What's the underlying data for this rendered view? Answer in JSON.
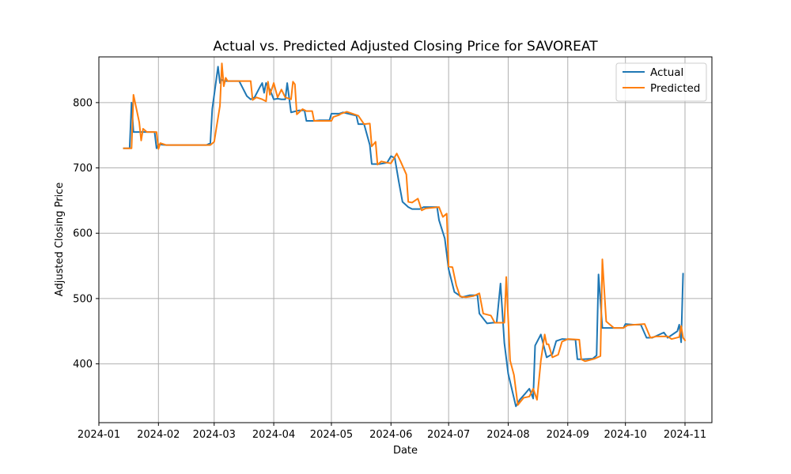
{
  "chart_data": {
    "type": "line",
    "title": "Actual vs. Predicted Adjusted Closing Price for SAVOREAT",
    "xlabel": "Date",
    "ylabel": "Adjusted Closing Price",
    "xlim": [
      "2024-01-01",
      "2024-11-15"
    ],
    "ylim": [
      310,
      870
    ],
    "x_ticks": [
      "2024-01-01",
      "2024-02-01",
      "2024-03-01",
      "2024-04-01",
      "2024-05-01",
      "2024-06-01",
      "2024-07-01",
      "2024-08-01",
      "2024-09-01",
      "2024-10-01",
      "2024-11-01"
    ],
    "x_tick_labels": [
      "2024-01",
      "2024-02",
      "2024-03",
      "2024-04",
      "2024-05",
      "2024-06",
      "2024-07",
      "2024-08",
      "2024-09",
      "2024-10",
      "2024-11"
    ],
    "y_ticks": [
      400,
      500,
      600,
      700,
      800
    ],
    "grid": true,
    "legend_position": "top-right",
    "colors": {
      "actual": "#1f77b4",
      "predicted": "#ff7f0e",
      "grid": "#b0b0b0",
      "axis": "#000000"
    },
    "series": [
      {
        "name": "Actual",
        "points": [
          [
            "2024-01-14",
            730
          ],
          [
            "2024-01-17",
            730
          ],
          [
            "2024-01-18",
            800
          ],
          [
            "2024-01-19",
            755
          ],
          [
            "2024-01-22",
            755
          ],
          [
            "2024-01-26",
            755
          ],
          [
            "2024-01-30",
            755
          ],
          [
            "2024-01-31",
            730
          ],
          [
            "2024-02-01",
            736
          ],
          [
            "2024-02-05",
            735
          ],
          [
            "2024-02-26",
            735
          ],
          [
            "2024-02-28",
            738
          ],
          [
            "2024-02-29",
            790
          ],
          [
            "2024-03-03",
            855
          ],
          [
            "2024-03-04",
            830
          ],
          [
            "2024-03-05",
            835
          ],
          [
            "2024-03-06",
            833
          ],
          [
            "2024-03-14",
            833
          ],
          [
            "2024-03-18",
            810
          ],
          [
            "2024-03-20",
            805
          ],
          [
            "2024-03-22",
            808
          ],
          [
            "2024-03-25",
            825
          ],
          [
            "2024-03-26",
            830
          ],
          [
            "2024-03-27",
            815
          ],
          [
            "2024-03-28",
            830
          ],
          [
            "2024-03-30",
            820
          ],
          [
            "2024-04-01",
            805
          ],
          [
            "2024-04-03",
            806
          ],
          [
            "2024-04-05",
            805
          ],
          [
            "2024-04-07",
            805
          ],
          [
            "2024-04-08",
            830
          ],
          [
            "2024-04-10",
            785
          ],
          [
            "2024-04-14",
            788
          ],
          [
            "2024-04-17",
            788
          ],
          [
            "2024-04-18",
            772
          ],
          [
            "2024-04-22",
            772
          ],
          [
            "2024-04-25",
            773
          ],
          [
            "2024-04-30",
            773
          ],
          [
            "2024-05-01",
            783
          ],
          [
            "2024-05-05",
            783
          ],
          [
            "2024-05-07",
            785
          ],
          [
            "2024-05-14",
            780
          ],
          [
            "2024-05-15",
            767
          ],
          [
            "2024-05-18",
            767
          ],
          [
            "2024-05-21",
            735
          ],
          [
            "2024-05-22",
            706
          ],
          [
            "2024-05-26",
            706
          ],
          [
            "2024-05-30",
            708
          ],
          [
            "2024-06-01",
            718
          ],
          [
            "2024-06-03",
            715
          ],
          [
            "2024-06-05",
            680
          ],
          [
            "2024-06-07",
            648
          ],
          [
            "2024-06-10",
            640
          ],
          [
            "2024-06-12",
            637
          ],
          [
            "2024-06-16",
            637
          ],
          [
            "2024-06-18",
            640
          ],
          [
            "2024-06-25",
            640
          ],
          [
            "2024-06-26",
            620
          ],
          [
            "2024-06-29",
            592
          ],
          [
            "2024-07-01",
            545
          ],
          [
            "2024-07-04",
            510
          ],
          [
            "2024-07-08",
            502
          ],
          [
            "2024-07-12",
            505
          ],
          [
            "2024-07-16",
            505
          ],
          [
            "2024-07-17",
            477
          ],
          [
            "2024-07-21",
            462
          ],
          [
            "2024-07-24",
            463
          ],
          [
            "2024-07-26",
            463
          ],
          [
            "2024-07-28",
            523
          ],
          [
            "2024-07-30",
            432
          ],
          [
            "2024-08-01",
            385
          ],
          [
            "2024-08-03",
            360
          ],
          [
            "2024-08-05",
            335
          ],
          [
            "2024-08-07",
            345
          ],
          [
            "2024-08-10",
            355
          ],
          [
            "2024-08-12",
            362
          ],
          [
            "2024-08-14",
            347
          ],
          [
            "2024-08-15",
            428
          ],
          [
            "2024-08-18",
            445
          ],
          [
            "2024-08-21",
            410
          ],
          [
            "2024-08-24",
            415
          ],
          [
            "2024-08-26",
            435
          ],
          [
            "2024-08-29",
            438
          ],
          [
            "2024-09-05",
            437
          ],
          [
            "2024-09-06",
            407
          ],
          [
            "2024-09-09",
            407
          ],
          [
            "2024-09-14",
            408
          ],
          [
            "2024-09-16",
            413
          ],
          [
            "2024-09-17",
            537
          ],
          [
            "2024-09-19",
            455
          ],
          [
            "2024-09-22",
            455
          ],
          [
            "2024-09-30",
            455
          ],
          [
            "2024-10-01",
            461
          ],
          [
            "2024-10-05",
            460
          ],
          [
            "2024-10-09",
            460
          ],
          [
            "2024-10-12",
            440
          ],
          [
            "2024-10-15",
            440
          ],
          [
            "2024-10-21",
            448
          ],
          [
            "2024-10-23",
            440
          ],
          [
            "2024-10-28",
            450
          ],
          [
            "2024-10-29",
            460
          ],
          [
            "2024-10-30",
            433
          ],
          [
            "2024-10-31",
            538
          ]
        ]
      },
      {
        "name": "Predicted",
        "points": [
          [
            "2024-01-14",
            730
          ],
          [
            "2024-01-18",
            730
          ],
          [
            "2024-01-19",
            812
          ],
          [
            "2024-01-22",
            770
          ],
          [
            "2024-01-23",
            742
          ],
          [
            "2024-01-24",
            760
          ],
          [
            "2024-01-26",
            755
          ],
          [
            "2024-01-31",
            755
          ],
          [
            "2024-02-01",
            729
          ],
          [
            "2024-02-02",
            738
          ],
          [
            "2024-02-05",
            735
          ],
          [
            "2024-02-28",
            735
          ],
          [
            "2024-03-01",
            740
          ],
          [
            "2024-03-04",
            795
          ],
          [
            "2024-03-05",
            860
          ],
          [
            "2024-03-06",
            825
          ],
          [
            "2024-03-07",
            838
          ],
          [
            "2024-03-08",
            833
          ],
          [
            "2024-03-14",
            833
          ],
          [
            "2024-03-20",
            833
          ],
          [
            "2024-03-21",
            804
          ],
          [
            "2024-03-23",
            808
          ],
          [
            "2024-03-26",
            805
          ],
          [
            "2024-03-28",
            802
          ],
          [
            "2024-03-29",
            832
          ],
          [
            "2024-03-30",
            812
          ],
          [
            "2024-04-01",
            830
          ],
          [
            "2024-04-03",
            808
          ],
          [
            "2024-04-05",
            820
          ],
          [
            "2024-04-07",
            808
          ],
          [
            "2024-04-10",
            805
          ],
          [
            "2024-04-11",
            832
          ],
          [
            "2024-04-12",
            828
          ],
          [
            "2024-04-13",
            782
          ],
          [
            "2024-04-16",
            790
          ],
          [
            "2024-04-18",
            787
          ],
          [
            "2024-04-21",
            787
          ],
          [
            "2024-04-22",
            772
          ],
          [
            "2024-04-26",
            772
          ],
          [
            "2024-05-01",
            772
          ],
          [
            "2024-05-02",
            778
          ],
          [
            "2024-05-05",
            781
          ],
          [
            "2024-05-06",
            783
          ],
          [
            "2024-05-09",
            786
          ],
          [
            "2024-05-15",
            780
          ],
          [
            "2024-05-18",
            767
          ],
          [
            "2024-05-21",
            768
          ],
          [
            "2024-05-22",
            733
          ],
          [
            "2024-05-24",
            740
          ],
          [
            "2024-05-25",
            705
          ],
          [
            "2024-05-27",
            710
          ],
          [
            "2024-05-30",
            708
          ],
          [
            "2024-06-01",
            707
          ],
          [
            "2024-06-04",
            722
          ],
          [
            "2024-06-06",
            710
          ],
          [
            "2024-06-09",
            690
          ],
          [
            "2024-06-10",
            648
          ],
          [
            "2024-06-12",
            647
          ],
          [
            "2024-06-15",
            653
          ],
          [
            "2024-06-17",
            635
          ],
          [
            "2024-06-19",
            638
          ],
          [
            "2024-06-26",
            640
          ],
          [
            "2024-06-28",
            625
          ],
          [
            "2024-06-30",
            630
          ],
          [
            "2024-07-01",
            549
          ],
          [
            "2024-07-03",
            548
          ],
          [
            "2024-07-05",
            520
          ],
          [
            "2024-07-07",
            503
          ],
          [
            "2024-07-10",
            502
          ],
          [
            "2024-07-14",
            504
          ],
          [
            "2024-07-17",
            508
          ],
          [
            "2024-07-19",
            477
          ],
          [
            "2024-07-23",
            474
          ],
          [
            "2024-07-25",
            463
          ],
          [
            "2024-07-30",
            463
          ],
          [
            "2024-07-31",
            533
          ],
          [
            "2024-08-02",
            405
          ],
          [
            "2024-08-04",
            383
          ],
          [
            "2024-08-06",
            337
          ],
          [
            "2024-08-09",
            348
          ],
          [
            "2024-08-12",
            350
          ],
          [
            "2024-08-14",
            362
          ],
          [
            "2024-08-16",
            345
          ],
          [
            "2024-08-18",
            405
          ],
          [
            "2024-08-20",
            445
          ],
          [
            "2024-08-21",
            430
          ],
          [
            "2024-08-22",
            430
          ],
          [
            "2024-08-24",
            410
          ],
          [
            "2024-08-27",
            414
          ],
          [
            "2024-08-29",
            434
          ],
          [
            "2024-09-01",
            438
          ],
          [
            "2024-09-07",
            437
          ],
          [
            "2024-09-08",
            407
          ],
          [
            "2024-09-10",
            404
          ],
          [
            "2024-09-15",
            408
          ],
          [
            "2024-09-18",
            412
          ],
          [
            "2024-09-19",
            560
          ],
          [
            "2024-09-21",
            465
          ],
          [
            "2024-09-25",
            455
          ],
          [
            "2024-09-30",
            455
          ],
          [
            "2024-10-02",
            459
          ],
          [
            "2024-10-06",
            460
          ],
          [
            "2024-10-11",
            461
          ],
          [
            "2024-10-14",
            440
          ],
          [
            "2024-10-17",
            442
          ],
          [
            "2024-10-23",
            442
          ],
          [
            "2024-10-25",
            438
          ],
          [
            "2024-10-29",
            441
          ],
          [
            "2024-10-30",
            458
          ],
          [
            "2024-10-31",
            440
          ],
          [
            "2024-11-01",
            436
          ]
        ]
      }
    ]
  }
}
